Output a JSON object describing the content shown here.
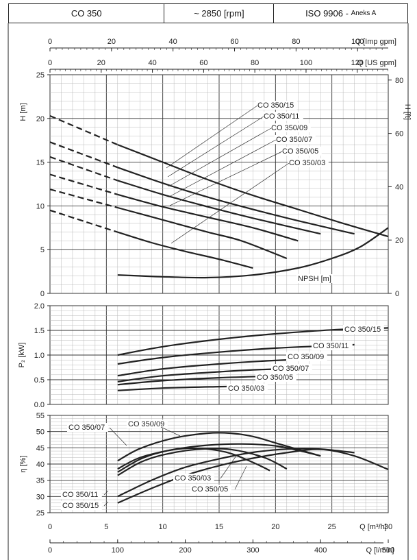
{
  "header": {
    "model": "CO 350",
    "speed": "~ 2850 [rpm]",
    "standard": "ISO 9906 -",
    "standard_annex": "Aneks A"
  },
  "axes": {
    "imp_gpm": {
      "label": "Q [Imp gpm]",
      "ticks": [
        "0",
        "20",
        "40",
        "60",
        "80",
        "100"
      ]
    },
    "us_gpm": {
      "label": "Q [US gpm]",
      "ticks": [
        "0",
        "20",
        "40",
        "60",
        "80",
        "100",
        "120"
      ]
    },
    "m3h": {
      "label": "Q [m³/h]",
      "ticks": [
        "0",
        "5",
        "10",
        "15",
        "20",
        "25",
        "30"
      ]
    },
    "lmin": {
      "label": "Q [l/min]",
      "ticks": [
        "0",
        "100",
        "200",
        "300",
        "400",
        "500"
      ]
    }
  },
  "chart_data": [
    {
      "type": "line",
      "panel": "head",
      "xlabel": "Q [m³/h]",
      "ylabel": "H [m]",
      "y2label": "H [ft]",
      "xlim": [
        0,
        30
      ],
      "ylim": [
        0,
        25
      ],
      "y2lim": [
        0,
        82
      ],
      "yticks": [
        "0",
        "5",
        "10",
        "15",
        "20",
        "25"
      ],
      "y2ticks": [
        "0",
        "20",
        "40",
        "60",
        "80"
      ],
      "dashed_until_x": 6,
      "series": [
        {
          "name": "CO 350/15",
          "x": [
            0,
            6,
            10,
            14,
            18,
            22,
            26,
            30
          ],
          "y": [
            20.3,
            17.0,
            15.0,
            13.0,
            11.2,
            9.6,
            8.0,
            6.5
          ]
        },
        {
          "name": "CO 350/11",
          "x": [
            0,
            6,
            10,
            14,
            18,
            22,
            27
          ],
          "y": [
            17.3,
            14.4,
            12.6,
            11.0,
            9.6,
            8.3,
            6.8
          ]
        },
        {
          "name": "CO 350/09",
          "x": [
            0,
            6,
            10,
            14,
            18,
            24
          ],
          "y": [
            15.6,
            12.9,
            11.3,
            9.9,
            8.6,
            6.8
          ]
        },
        {
          "name": "CO 350/07",
          "x": [
            0,
            6,
            10,
            14,
            18,
            22
          ],
          "y": [
            13.6,
            11.3,
            9.9,
            8.7,
            7.5,
            6.0
          ]
        },
        {
          "name": "CO 350/05",
          "x": [
            0,
            6,
            10,
            14,
            17,
            21
          ],
          "y": [
            11.9,
            9.8,
            8.4,
            7.0,
            6.0,
            4.0
          ]
        },
        {
          "name": "CO 350/03",
          "x": [
            0,
            6,
            9,
            12,
            15,
            18
          ],
          "y": [
            9.5,
            7.0,
            5.8,
            4.8,
            3.9,
            2.9
          ]
        },
        {
          "name": "NPSH [m]",
          "x": [
            6,
            8,
            10,
            14,
            18,
            22,
            25,
            27.5,
            30
          ],
          "y": [
            2.1,
            2.0,
            1.9,
            1.8,
            2.1,
            2.9,
            4.0,
            5.3,
            7.5
          ]
        }
      ]
    },
    {
      "type": "line",
      "panel": "power",
      "xlabel": "Q [m³/h]",
      "ylabel": "P₂ [kW]",
      "xlim": [
        0,
        30
      ],
      "ylim": [
        0,
        2.0
      ],
      "yticks": [
        "0.0",
        "0.5",
        "1.0",
        "1.5",
        "2.0"
      ],
      "series": [
        {
          "name": "CO 350/15",
          "x": [
            6,
            10,
            15,
            20,
            25,
            30
          ],
          "y": [
            1.0,
            1.17,
            1.32,
            1.43,
            1.51,
            1.55
          ]
        },
        {
          "name": "CO 350/11",
          "x": [
            6,
            10,
            15,
            20,
            27
          ],
          "y": [
            0.82,
            0.95,
            1.06,
            1.14,
            1.21
          ]
        },
        {
          "name": "CO 350/09",
          "x": [
            6,
            10,
            15,
            20,
            24
          ],
          "y": [
            0.58,
            0.72,
            0.82,
            0.89,
            0.92
          ]
        },
        {
          "name": "CO 350/07",
          "x": [
            6,
            10,
            15,
            18,
            22
          ],
          "y": [
            0.46,
            0.58,
            0.66,
            0.7,
            0.73
          ]
        },
        {
          "name": "CO 350/05",
          "x": [
            6,
            10,
            15,
            21
          ],
          "y": [
            0.4,
            0.48,
            0.54,
            0.58
          ]
        },
        {
          "name": "CO 350/03",
          "x": [
            6,
            10,
            15,
            18
          ],
          "y": [
            0.28,
            0.33,
            0.36,
            0.37
          ]
        }
      ]
    },
    {
      "type": "line",
      "panel": "efficiency",
      "xlabel": "Q [m³/h]",
      "ylabel": "η [%]",
      "xlim": [
        0,
        30
      ],
      "ylim": [
        25,
        55
      ],
      "yticks": [
        "25",
        "30",
        "35",
        "40",
        "45",
        "50",
        "55"
      ],
      "series": [
        {
          "name": "CO 350/07",
          "x": [
            6,
            8,
            11,
            14,
            16,
            18,
            20,
            22,
            24
          ],
          "y": [
            41,
            44.8,
            48,
            49.5,
            49.5,
            48.5,
            46.5,
            44.5,
            42.5
          ]
        },
        {
          "name": "CO 350/09",
          "x": [
            6,
            8,
            11,
            14,
            17,
            20,
            22,
            24
          ],
          "y": [
            38.5,
            42,
            44.5,
            45.8,
            46.2,
            45.6,
            44.2,
            42.5
          ]
        },
        {
          "name": "CO 350/03",
          "x": [
            6,
            8,
            10,
            12,
            14,
            16,
            18,
            19.5
          ],
          "y": [
            37.5,
            41.5,
            43.8,
            44.8,
            44.6,
            43.3,
            40.5,
            38
          ]
        },
        {
          "name": "CO 350/05",
          "x": [
            6,
            8,
            10,
            13,
            16,
            19,
            21
          ],
          "y": [
            36.5,
            40.5,
            42.8,
            44.5,
            44.5,
            42,
            38.5
          ]
        },
        {
          "name": "CO 350/11",
          "x": [
            6,
            9,
            12,
            15,
            18,
            21,
            24,
            27
          ],
          "y": [
            30,
            35,
            39,
            41.6,
            43.6,
            44.6,
            44.6,
            43.5
          ]
        },
        {
          "name": "CO 350/15",
          "x": [
            6,
            9,
            12,
            15,
            18,
            21,
            24,
            27,
            30
          ],
          "y": [
            28,
            32.5,
            36.5,
            39.5,
            41.8,
            43.5,
            44.5,
            42.5,
            38.3
          ]
        }
      ]
    }
  ]
}
